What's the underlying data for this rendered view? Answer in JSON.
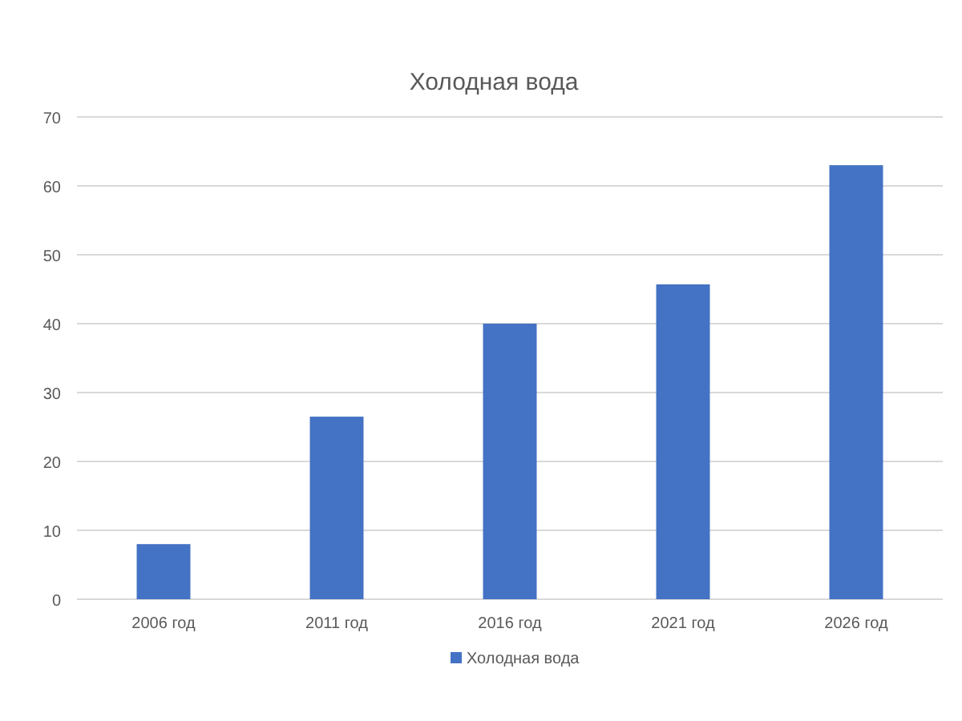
{
  "chart_data": {
    "type": "bar",
    "title": "Холодная вода",
    "categories": [
      "2006 год",
      "2011 год",
      "2016 год",
      "2021 год",
      "2026 год"
    ],
    "series": [
      {
        "name": "Холодная вода",
        "color": "#4472c4",
        "values": [
          8,
          26.5,
          40,
          45.7,
          63
        ]
      }
    ],
    "ylim": [
      0,
      70
    ],
    "yticks": [
      0,
      10,
      20,
      30,
      40,
      50,
      60,
      70
    ],
    "grid": "y",
    "legend": "bottom"
  }
}
